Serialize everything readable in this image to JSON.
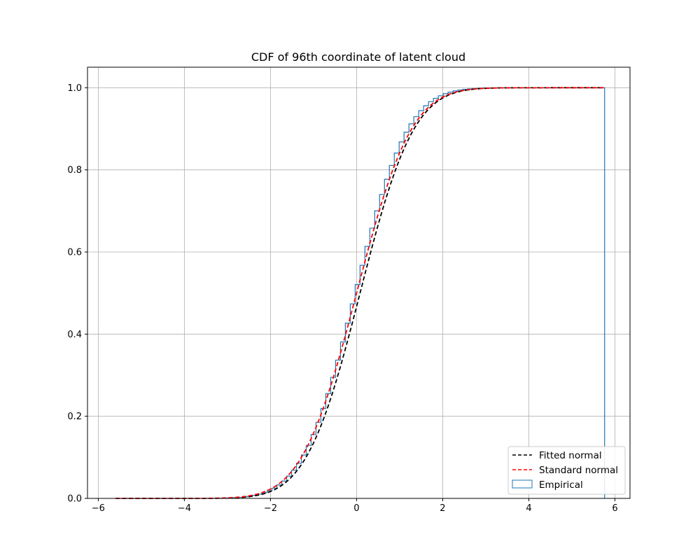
{
  "chart_data": {
    "type": "line",
    "title": "CDF of 96th coordinate of latent cloud",
    "xlabel": "",
    "ylabel": "",
    "xlim": [
      -6.25,
      6.35
    ],
    "ylim": [
      0,
      1.05
    ],
    "xticks": [
      -6,
      -4,
      -2,
      0,
      2,
      4,
      6
    ],
    "xtick_labels": [
      "−6",
      "−4",
      "−2",
      "0",
      "2",
      "4",
      "6"
    ],
    "yticks": [
      0.0,
      0.2,
      0.4,
      0.6,
      0.8,
      1.0
    ],
    "ytick_labels": [
      "0.0",
      "0.2",
      "0.4",
      "0.6",
      "0.8",
      "1.0"
    ],
    "grid": true,
    "legend_position": "lower-right",
    "series": [
      {
        "name": "Fitted normal",
        "kind": "normal-cdf",
        "mean": 0.08,
        "std": 0.98,
        "x_range": [
          -5.6,
          5.75
        ],
        "color": "#000000",
        "dash": "dashed"
      },
      {
        "name": "Standard normal",
        "kind": "normal-cdf",
        "mean": 0.0,
        "std": 1.0,
        "x_range": [
          -5.6,
          5.75
        ],
        "color": "#ff0000",
        "dash": "dashed"
      },
      {
        "name": "Empirical",
        "kind": "step-histogram-cdf",
        "bins": 100,
        "x_range": [
          -5.6,
          5.76
        ],
        "mean": 0.03,
        "std": 0.96,
        "color": "#1f77b4"
      }
    ]
  },
  "legend": {
    "items": [
      {
        "label": "Fitted normal"
      },
      {
        "label": "Standard normal"
      },
      {
        "label": "Empirical"
      }
    ]
  }
}
